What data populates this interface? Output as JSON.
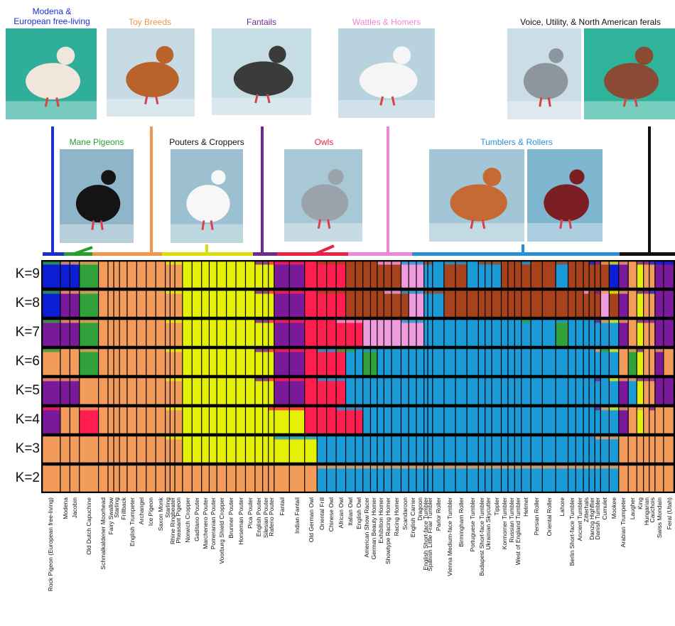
{
  "groups": [
    {
      "id": "modena",
      "line1": "Modena &",
      "line2": "European free-living",
      "color": "#1c2fcf"
    },
    {
      "id": "toy",
      "line1": "Toy Breeds",
      "color": "#f0964a"
    },
    {
      "id": "fantails",
      "line1": "Fantails",
      "color": "#6e2a8f"
    },
    {
      "id": "wattles",
      "line1": "Wattles & Homers",
      "color": "#ee86d6"
    },
    {
      "id": "voice",
      "line1": "Voice, Utility, & North American ferals",
      "color": "#111111"
    },
    {
      "id": "mane",
      "line1": "Mane Pigeons",
      "color": "#2a9d2f"
    },
    {
      "id": "pouters",
      "line1": "Pouters & Croppers",
      "color": "#111111"
    },
    {
      "id": "owls",
      "line1": "Owls",
      "color": "#e8204a"
    },
    {
      "id": "tumblers",
      "line1": "Tumblers & Rollers",
      "color": "#2b8fd6"
    }
  ],
  "photos": [
    {
      "id": "photo-modena",
      "bg": "#2fae9a",
      "bird": "#f1e6dc"
    },
    {
      "id": "photo-toy",
      "bg": "#c6dbe4",
      "bird": "#b9622c"
    },
    {
      "id": "photo-fantail",
      "bg": "#c7dde6",
      "bird": "#3b3b3b"
    },
    {
      "id": "photo-wattle",
      "bg": "#b8d2de",
      "bird": "#f5f5f5"
    },
    {
      "id": "photo-voice",
      "bg": "#cbdde6",
      "bird": "#8c969c"
    },
    {
      "id": "photo-feral",
      "bg": "#2fb49b",
      "bird": "#8a4a34"
    },
    {
      "id": "photo-mane",
      "bg": "#8fb6c8",
      "bird": "#141414"
    },
    {
      "id": "photo-pouter",
      "bg": "#9cc0d0",
      "bird": "#f7f7f7"
    },
    {
      "id": "photo-owl",
      "bg": "#a8c8d6",
      "bird": "#9aa2aa"
    },
    {
      "id": "photo-tumbler",
      "bg": "#a2c6d6",
      "bird": "#c56a34"
    },
    {
      "id": "photo-roller",
      "bg": "#7eb6d0",
      "bird": "#7a1e24"
    }
  ],
  "chart_data": {
    "type": "stacked-bar",
    "rows": [
      "K=9",
      "K=8",
      "K=7",
      "K=6",
      "K=5",
      "K=4",
      "K=3",
      "K=2"
    ],
    "colors": {
      "orange": "#f29b5b",
      "blue": "#1a9ad7",
      "yellow": "#e4f005",
      "red": "#ff1e4f",
      "purple": "#7a1a9a",
      "green": "#30a23a",
      "pink": "#f09bde",
      "brown": "#a8421c",
      "navy": "#0b1ed6"
    },
    "breeds": [
      {
        "name": "Rock Pigeon (European free-living)",
        "w": 2,
        "k": [
          "navy",
          "navy",
          "purple",
          "orange",
          "purple",
          "purple",
          "orange",
          "orange"
        ]
      },
      {
        "name": "Modena",
        "w": 1,
        "k": [
          "navy",
          "purple",
          "purple",
          "orange",
          "purple",
          "orange",
          "orange",
          "orange"
        ]
      },
      {
        "name": "Jacobin",
        "w": 1,
        "k": [
          "navy",
          "purple",
          "purple",
          "orange",
          "purple",
          "orange",
          "orange",
          "orange"
        ]
      },
      {
        "name": "Old Dutch Capuchine",
        "w": 2,
        "k": [
          "green",
          "green",
          "green",
          "green",
          "orange",
          "red",
          "orange",
          "orange"
        ]
      },
      {
        "name": "Schmalkaldener Moorhead",
        "w": 1,
        "k": [
          "orange",
          "orange",
          "orange",
          "orange",
          "orange",
          "orange",
          "orange",
          "orange"
        ]
      },
      {
        "name": "Fairy Swallow",
        "w": 0.6,
        "k": [
          "orange",
          "orange",
          "orange",
          "orange",
          "orange",
          "orange",
          "orange",
          "orange"
        ]
      },
      {
        "name": "Starling",
        "w": 0.6,
        "k": [
          "orange",
          "orange",
          "orange",
          "orange",
          "orange",
          "orange",
          "orange",
          "orange"
        ]
      },
      {
        "name": "Frillback",
        "w": 0.8,
        "k": [
          "orange",
          "orange",
          "orange",
          "orange",
          "orange",
          "orange",
          "orange",
          "orange"
        ]
      },
      {
        "name": "English Trumpeter",
        "w": 1,
        "k": [
          "orange",
          "orange",
          "orange",
          "orange",
          "orange",
          "orange",
          "orange",
          "orange"
        ]
      },
      {
        "name": "Archangel",
        "w": 1,
        "k": [
          "orange",
          "orange",
          "orange",
          "orange",
          "orange",
          "orange",
          "orange",
          "orange"
        ]
      },
      {
        "name": "Ice Pigeon",
        "w": 1,
        "k": [
          "orange",
          "orange",
          "orange",
          "orange",
          "orange",
          "orange",
          "orange",
          "orange"
        ]
      },
      {
        "name": "Saxon Monk",
        "w": 1,
        "k": [
          "orange",
          "orange",
          "orange",
          "orange",
          "orange",
          "orange",
          "orange",
          "orange"
        ]
      },
      {
        "name": "Starling",
        "w": 0.5,
        "k": [
          "orange",
          "orange",
          "orange",
          "orange",
          "orange",
          "orange",
          "orange",
          "orange"
        ]
      },
      {
        "name": "Rhine Ringbeater",
        "w": 0.5,
        "k": [
          "orange",
          "orange",
          "orange",
          "orange",
          "orange",
          "orange",
          "orange",
          "orange"
        ]
      },
      {
        "name": "Pheasant Pigeon",
        "w": 0.8,
        "k": [
          "orange",
          "orange",
          "orange",
          "orange",
          "orange",
          "orange",
          "orange",
          "orange"
        ]
      },
      {
        "name": "Norwich Cropper",
        "w": 1,
        "k": [
          "yellow",
          "yellow",
          "yellow",
          "yellow",
          "yellow",
          "yellow",
          "yellow",
          "orange"
        ]
      },
      {
        "name": "Gaditano Pouter",
        "w": 1,
        "k": [
          "yellow",
          "yellow",
          "yellow",
          "yellow",
          "yellow",
          "yellow",
          "yellow",
          "orange"
        ]
      },
      {
        "name": "Marchenero Pouter",
        "w": 0.8,
        "k": [
          "yellow",
          "yellow",
          "yellow",
          "yellow",
          "yellow",
          "yellow",
          "yellow",
          "orange"
        ]
      },
      {
        "name": "Pomeranian Pouter",
        "w": 0.8,
        "k": [
          "yellow",
          "yellow",
          "yellow",
          "yellow",
          "yellow",
          "yellow",
          "yellow",
          "orange"
        ]
      },
      {
        "name": "Voorburg Shield Cropper",
        "w": 1,
        "k": [
          "yellow",
          "yellow",
          "yellow",
          "yellow",
          "yellow",
          "yellow",
          "yellow",
          "orange"
        ]
      },
      {
        "name": "Brunner Pouter",
        "w": 1,
        "k": [
          "yellow",
          "yellow",
          "yellow",
          "yellow",
          "yellow",
          "yellow",
          "yellow",
          "orange"
        ]
      },
      {
        "name": "Horseman Pouter",
        "w": 1,
        "k": [
          "yellow",
          "yellow",
          "yellow",
          "yellow",
          "yellow",
          "yellow",
          "yellow",
          "orange"
        ]
      },
      {
        "name": "Pica Pouter",
        "w": 1,
        "k": [
          "yellow",
          "yellow",
          "yellow",
          "yellow",
          "yellow",
          "yellow",
          "yellow",
          "orange"
        ]
      },
      {
        "name": "English Pouter",
        "w": 0.8,
        "k": [
          "yellow",
          "yellow",
          "yellow",
          "yellow",
          "yellow",
          "yellow",
          "yellow",
          "orange"
        ]
      },
      {
        "name": "Silesian Pouter",
        "w": 0.6,
        "k": [
          "yellow",
          "yellow",
          "yellow",
          "yellow",
          "yellow",
          "yellow",
          "yellow",
          "orange"
        ]
      },
      {
        "name": "Raferio Pouter",
        "w": 0.6,
        "k": [
          "yellow",
          "yellow",
          "yellow",
          "yellow",
          "yellow",
          "yellow",
          "yellow",
          "orange"
        ]
      },
      {
        "name": "Fantail",
        "w": 1.6,
        "k": [
          "purple",
          "purple",
          "purple",
          "purple",
          "purple",
          "yellow",
          "yellow",
          "orange"
        ]
      },
      {
        "name": "Indian Fantail",
        "w": 1.6,
        "k": [
          "purple",
          "purple",
          "purple",
          "purple",
          "purple",
          "yellow",
          "yellow",
          "orange"
        ]
      },
      {
        "name": "Old German Owl",
        "w": 1.3,
        "k": [
          "red",
          "red",
          "red",
          "red",
          "red",
          "red",
          "yellow",
          "orange"
        ]
      },
      {
        "name": "Oriental Frill",
        "w": 1,
        "k": [
          "red",
          "red",
          "red",
          "red",
          "red",
          "red",
          "blue",
          "blue"
        ]
      },
      {
        "name": "Chinese Owl",
        "w": 1,
        "k": [
          "red",
          "red",
          "red",
          "red",
          "red",
          "red",
          "blue",
          "blue"
        ]
      },
      {
        "name": "African Owl",
        "w": 1,
        "k": [
          "red",
          "red",
          "red",
          "red",
          "red",
          "red",
          "blue",
          "blue"
        ]
      },
      {
        "name": "Italian Owl",
        "w": 1,
        "k": [
          "brown",
          "brown",
          "red",
          "blue",
          "blue",
          "red",
          "blue",
          "blue"
        ]
      },
      {
        "name": "English Owl",
        "w": 0.8,
        "k": [
          "brown",
          "brown",
          "red",
          "blue",
          "blue",
          "red",
          "blue",
          "blue"
        ]
      },
      {
        "name": "American Show Racer",
        "w": 0.8,
        "k": [
          "brown",
          "brown",
          "pink",
          "green",
          "blue",
          "blue",
          "blue",
          "blue"
        ]
      },
      {
        "name": "German Beauty Homer",
        "w": 0.7,
        "k": [
          "brown",
          "brown",
          "pink",
          "green",
          "blue",
          "blue",
          "blue",
          "blue"
        ]
      },
      {
        "name": "Exhibition Homer",
        "w": 0.7,
        "k": [
          "brown",
          "brown",
          "pink",
          "blue",
          "blue",
          "blue",
          "blue",
          "blue"
        ]
      },
      {
        "name": "Showtype Racing Homer",
        "w": 0.8,
        "k": [
          "brown",
          "brown",
          "pink",
          "blue",
          "blue",
          "blue",
          "blue",
          "blue"
        ]
      },
      {
        "name": "Racing Homer",
        "w": 1,
        "k": [
          "brown",
          "brown",
          "pink",
          "blue",
          "blue",
          "blue",
          "blue",
          "blue"
        ]
      },
      {
        "name": "Scandaroon",
        "w": 0.8,
        "k": [
          "pink",
          "brown",
          "pink",
          "blue",
          "blue",
          "blue",
          "blue",
          "blue"
        ]
      },
      {
        "name": "English Carrier",
        "w": 0.8,
        "k": [
          "pink",
          "pink",
          "pink",
          "blue",
          "blue",
          "blue",
          "blue",
          "blue"
        ]
      },
      {
        "name": "Dragoon",
        "w": 0.8,
        "k": [
          "pink",
          "pink",
          "pink",
          "blue",
          "blue",
          "blue",
          "blue",
          "blue"
        ]
      },
      {
        "name": "English Short-face Tumbler",
        "w": 0.4,
        "k": [
          "blue",
          "blue",
          "blue",
          "blue",
          "blue",
          "blue",
          "blue",
          "blue"
        ]
      },
      {
        "name": "Spanish Little Friar Tumbler",
        "w": 0.5,
        "k": [
          "blue",
          "blue",
          "blue",
          "blue",
          "blue",
          "blue",
          "blue",
          "blue"
        ]
      },
      {
        "name": "Parlor Roller",
        "w": 1.2,
        "k": [
          "blue",
          "blue",
          "blue",
          "blue",
          "blue",
          "blue",
          "blue",
          "blue"
        ]
      },
      {
        "name": "Vienna Medium-face Tumbler",
        "w": 1.2,
        "k": [
          "brown",
          "brown",
          "blue",
          "blue",
          "blue",
          "blue",
          "blue",
          "blue"
        ]
      },
      {
        "name": "Birmingham Roller",
        "w": 1.2,
        "k": [
          "brown",
          "brown",
          "blue",
          "blue",
          "blue",
          "blue",
          "blue",
          "blue"
        ]
      },
      {
        "name": "Portuguese Tumbler",
        "w": 1.2,
        "k": [
          "blue",
          "brown",
          "blue",
          "blue",
          "blue",
          "blue",
          "blue",
          "blue"
        ]
      },
      {
        "name": "Budapest Short-face Tumbler",
        "w": 0.7,
        "k": [
          "blue",
          "brown",
          "blue",
          "blue",
          "blue",
          "blue",
          "blue",
          "blue"
        ]
      },
      {
        "name": "Ukrainian Skycutter",
        "w": 0.7,
        "k": [
          "blue",
          "brown",
          "blue",
          "blue",
          "blue",
          "blue",
          "blue",
          "blue"
        ]
      },
      {
        "name": "Tippler",
        "w": 1,
        "k": [
          "blue",
          "brown",
          "blue",
          "blue",
          "blue",
          "blue",
          "blue",
          "blue"
        ]
      },
      {
        "name": "Kormorner Tumbler",
        "w": 0.7,
        "k": [
          "brown",
          "brown",
          "blue",
          "blue",
          "blue",
          "blue",
          "blue",
          "blue"
        ]
      },
      {
        "name": "Russian Tumbler",
        "w": 0.7,
        "k": [
          "brown",
          "brown",
          "blue",
          "blue",
          "blue",
          "blue",
          "blue",
          "blue"
        ]
      },
      {
        "name": "West of England Tumbler",
        "w": 0.7,
        "k": [
          "brown",
          "brown",
          "blue",
          "blue",
          "blue",
          "blue",
          "blue",
          "blue"
        ]
      },
      {
        "name": "Helmet",
        "w": 1,
        "k": [
          "brown",
          "brown",
          "blue",
          "blue",
          "blue",
          "blue",
          "blue",
          "blue"
        ]
      },
      {
        "name": "Persian Roller",
        "w": 1.2,
        "k": [
          "brown",
          "brown",
          "blue",
          "blue",
          "blue",
          "blue",
          "blue",
          "blue"
        ]
      },
      {
        "name": "Oriental Roller",
        "w": 1.4,
        "k": [
          "brown",
          "brown",
          "blue",
          "blue",
          "blue",
          "blue",
          "blue",
          "blue"
        ]
      },
      {
        "name": "Lahore",
        "w": 1.3,
        "k": [
          "blue",
          "brown",
          "green",
          "blue",
          "blue",
          "blue",
          "blue",
          "blue"
        ]
      },
      {
        "name": "Berlin Short-face Tumbler",
        "w": 0.8,
        "k": [
          "brown",
          "brown",
          "blue",
          "blue",
          "blue",
          "blue",
          "blue",
          "blue"
        ]
      },
      {
        "name": "Ancient Tumbler",
        "w": 0.8,
        "k": [
          "brown",
          "brown",
          "blue",
          "blue",
          "blue",
          "blue",
          "blue",
          "blue"
        ]
      },
      {
        "name": "Zitterhals",
        "w": 0.6,
        "k": [
          "brown",
          "brown",
          "blue",
          "blue",
          "blue",
          "blue",
          "blue",
          "blue"
        ]
      },
      {
        "name": "Danzig Highflier",
        "w": 0.6,
        "k": [
          "brown",
          "brown",
          "blue",
          "blue",
          "blue",
          "blue",
          "blue",
          "blue"
        ]
      },
      {
        "name": "Danish Tumbler",
        "w": 0.6,
        "k": [
          "brown",
          "brown",
          "blue",
          "blue",
          "blue",
          "blue",
          "blue",
          "blue"
        ]
      },
      {
        "name": "Cumulet",
        "w": 0.9,
        "k": [
          "brown",
          "pink",
          "blue",
          "blue",
          "blue",
          "blue",
          "blue",
          "blue"
        ]
      },
      {
        "name": "Mookee",
        "w": 1,
        "k": [
          "navy",
          "brown",
          "blue",
          "blue",
          "blue",
          "blue",
          "blue",
          "blue"
        ]
      },
      {
        "name": "Arabian Trumpeter",
        "w": 1,
        "k": [
          "purple",
          "purple",
          "purple",
          "orange",
          "purple",
          "purple",
          "orange",
          "orange"
        ]
      },
      {
        "name": "Laugher",
        "w": 0.9,
        "k": [
          "orange",
          "orange",
          "orange",
          "green",
          "blue",
          "orange",
          "orange",
          "orange"
        ]
      },
      {
        "name": "King",
        "w": 0.7,
        "k": [
          "yellow",
          "yellow",
          "yellow",
          "yellow",
          "yellow",
          "yellow",
          "orange",
          "orange"
        ]
      },
      {
        "name": "Hungarian",
        "w": 0.6,
        "k": [
          "orange",
          "orange",
          "orange",
          "orange",
          "orange",
          "orange",
          "orange",
          "orange"
        ]
      },
      {
        "name": "Cauchois",
        "w": 0.6,
        "k": [
          "orange",
          "orange",
          "orange",
          "orange",
          "orange",
          "orange",
          "orange",
          "orange"
        ]
      },
      {
        "name": "Swiss Mondain",
        "w": 0.9,
        "k": [
          "purple",
          "purple",
          "purple",
          "purple",
          "purple",
          "orange",
          "orange",
          "orange"
        ]
      },
      {
        "name": "Feral (Utah)",
        "w": 1.2,
        "k": [
          "purple",
          "purple",
          "purple",
          "orange",
          "purple",
          "orange",
          "orange",
          "orange"
        ]
      }
    ]
  }
}
